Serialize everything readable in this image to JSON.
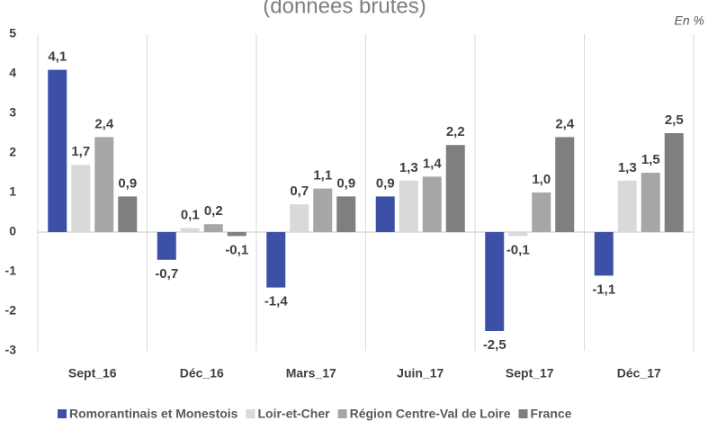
{
  "chart_data": {
    "type": "bar",
    "title": "(données brutes)",
    "unit_label": "En %",
    "categories": [
      "Sept_16",
      "Déc_16",
      "Mars_17",
      "Juin_17",
      "Sept_17",
      "Déc_17"
    ],
    "series": [
      {
        "name": "Romorantinais et Monestois",
        "color": "#3c50a8",
        "values": [
          4.1,
          -0.7,
          -1.4,
          0.9,
          -2.5,
          -1.1
        ],
        "value_labels": [
          "4,1",
          "-0,7",
          "-1,4",
          "0,9",
          "-2,5",
          "-1,1"
        ]
      },
      {
        "name": "Loir-et-Cher",
        "color": "#d9d9d9",
        "values": [
          1.7,
          0.1,
          0.7,
          1.3,
          -0.1,
          1.3
        ],
        "value_labels": [
          "1,7",
          "0,1",
          "0,7",
          "1,3",
          "-0,1",
          "1,3"
        ]
      },
      {
        "name": "Région Centre-Val de Loire",
        "color": "#a6a6a6",
        "values": [
          2.4,
          0.2,
          1.1,
          1.4,
          1.0,
          1.5
        ],
        "value_labels": [
          "2,4",
          "0,2",
          "1,1",
          "1,4",
          "1,0",
          "1,5"
        ]
      },
      {
        "name": "France",
        "color": "#7f7f7f",
        "values": [
          0.9,
          -0.1,
          0.9,
          2.2,
          2.4,
          2.5
        ],
        "value_labels": [
          "0,9",
          "-0,1",
          "0,9",
          "2,2",
          "2,4",
          "2,5"
        ]
      }
    ],
    "ylim": [
      -3,
      5
    ],
    "yticks": [
      -3,
      -2,
      -1,
      0,
      1,
      2,
      3,
      4,
      5
    ],
    "grid": true,
    "legend": "bottom"
  }
}
